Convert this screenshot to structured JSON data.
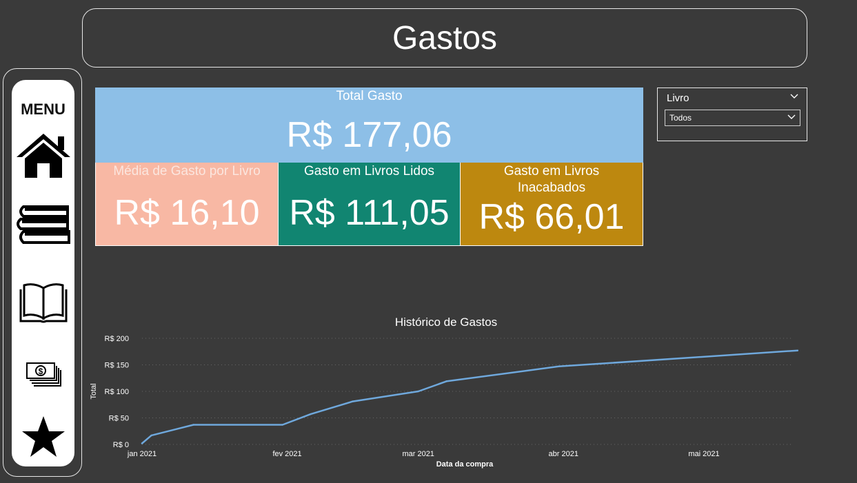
{
  "page": {
    "title": "Gastos"
  },
  "menu": {
    "label": "MENU",
    "items": [
      {
        "icon": "home-icon"
      },
      {
        "icon": "books-stack-icon"
      },
      {
        "icon": "open-book-icon"
      },
      {
        "icon": "money-icon"
      },
      {
        "icon": "star-icon"
      }
    ]
  },
  "cards": {
    "total": {
      "label": "Total Gasto",
      "value": "R$ 177,06",
      "color": "#8dbfe7"
    },
    "media": {
      "label": "Média de Gasto por Livro",
      "value": "R$ 16,10",
      "color": "#f8b8a4"
    },
    "lidos": {
      "label": "Gasto em Livros Lidos",
      "value": "R$ 111,05",
      "color": "#118571"
    },
    "inacabados": {
      "label": "Gasto em Livros Inacabados",
      "value": "R$ 66,01",
      "color": "#bd880f"
    }
  },
  "slicer": {
    "title": "Livro",
    "selected": "Todos"
  },
  "chart_data": {
    "type": "line",
    "title": "Histórico de Gastos",
    "xlabel": "Data da compra",
    "ylabel": "Total",
    "x_ticks": [
      "jan 2021",
      "fev 2021",
      "mar 2021",
      "abr 2021",
      "mai 2021"
    ],
    "y_ticks": [
      "R$ 0",
      "R$ 50",
      "R$ 100",
      "R$ 150",
      "R$ 200"
    ],
    "ylim": [
      0,
      200
    ],
    "grid": true,
    "series": [
      {
        "color": "#6fa8dc",
        "points": [
          {
            "x": "2021-01-01",
            "y": 2
          },
          {
            "x": "2021-01-03",
            "y": 17
          },
          {
            "x": "2021-01-12",
            "y": 37
          },
          {
            "x": "2021-01-31",
            "y": 37
          },
          {
            "x": "2021-02-06",
            "y": 57
          },
          {
            "x": "2021-02-15",
            "y": 81
          },
          {
            "x": "2021-03-01",
            "y": 100
          },
          {
            "x": "2021-03-07",
            "y": 119
          },
          {
            "x": "2021-03-31",
            "y": 147
          },
          {
            "x": "2021-05-21",
            "y": 177.06
          }
        ]
      }
    ]
  }
}
